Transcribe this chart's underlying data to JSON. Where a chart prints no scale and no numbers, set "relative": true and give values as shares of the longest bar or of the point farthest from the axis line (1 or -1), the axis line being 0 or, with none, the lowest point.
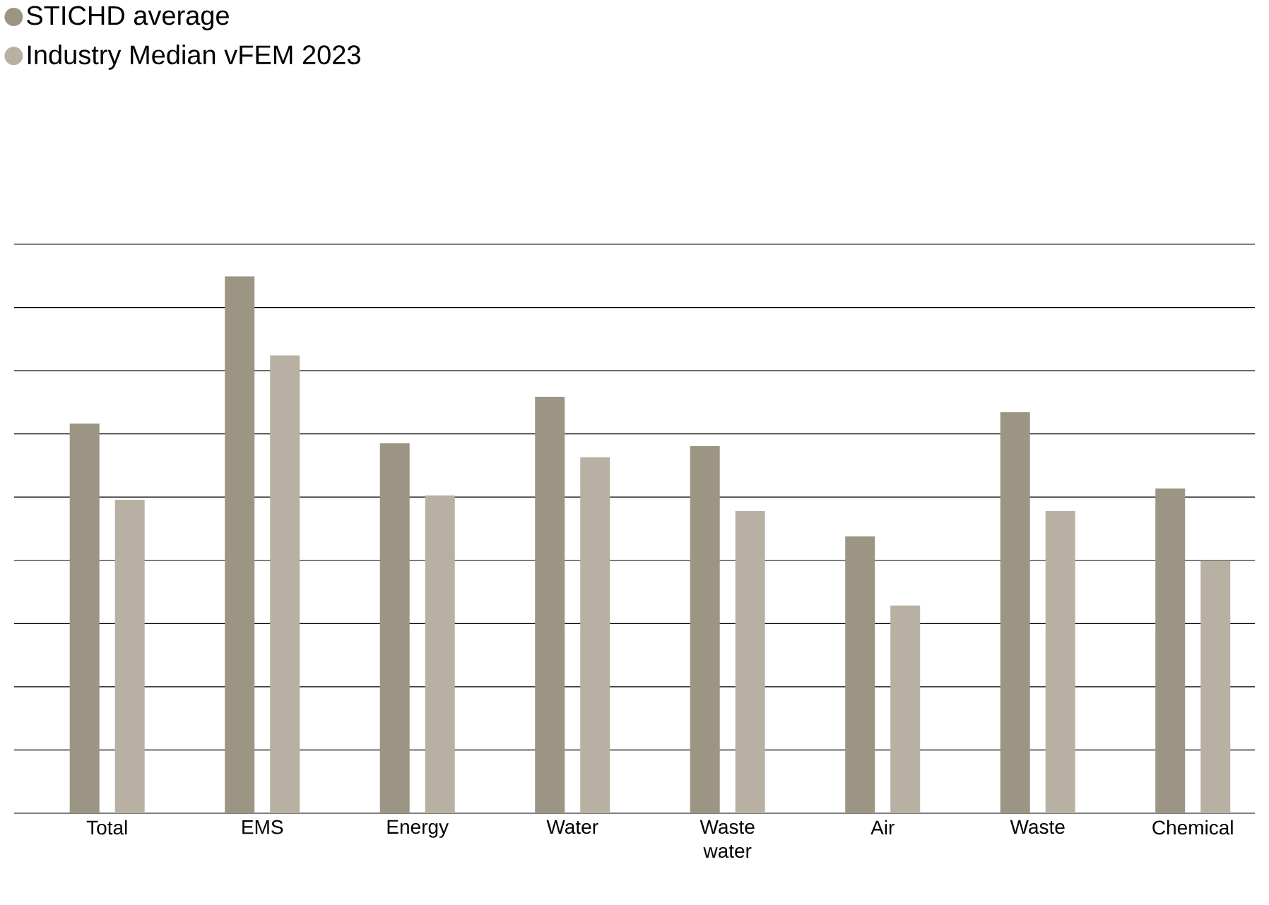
{
  "chart_data": {
    "type": "bar",
    "relative": true,
    "grid": "y",
    "legend": "top left",
    "marker": "circle",
    "categories": [
      "Total",
      "EMS",
      "Energy",
      "Water",
      "Waste water",
      "Air",
      "Waste",
      "Chemical"
    ],
    "series": [
      {
        "name": "STICHD average",
        "color": "#9d9584",
        "values": [
          0.726,
          1,
          0.689,
          0.776,
          0.684,
          0.516,
          0.747,
          0.605
        ]
      },
      {
        "name": "Industry Median vFEM 2023",
        "color": "#b8b0a3",
        "values": [
          0.584,
          0.853,
          0.592,
          0.663,
          0.563,
          0.387,
          0.563,
          0.471
        ]
      }
    ]
  }
}
